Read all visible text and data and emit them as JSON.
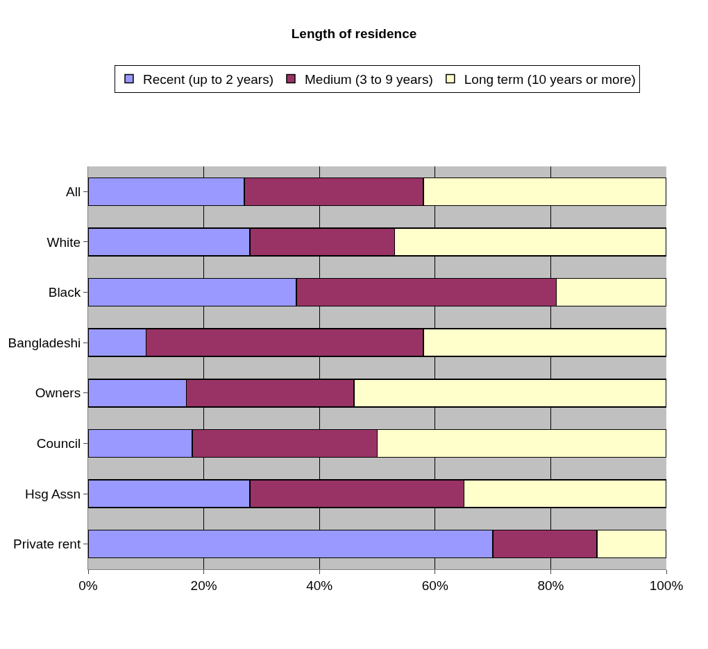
{
  "chart_data": {
    "type": "bar",
    "orientation": "horizontal",
    "stacked": true,
    "title": "Length of residence",
    "categories": [
      "All",
      "White",
      "Black",
      "Bangladeshi",
      "Owners",
      "Council",
      "Hsg Assn",
      "Private rent"
    ],
    "series": [
      {
        "name": "Recent (up to 2 years)",
        "color": "#9999ff",
        "values": [
          27,
          28,
          36,
          10,
          17,
          18,
          28,
          70
        ]
      },
      {
        "name": "Medium (3 to 9 years)",
        "color": "#993366",
        "values": [
          31,
          25,
          45,
          48,
          29,
          32,
          37,
          18
        ]
      },
      {
        "name": "Long term (10 years or more)",
        "color": "#ffffcc",
        "values": [
          42,
          47,
          19,
          42,
          54,
          50,
          35,
          12
        ]
      }
    ],
    "xlim": [
      0,
      100
    ],
    "xticks": [
      {
        "value": 0,
        "label": "0%"
      },
      {
        "value": 20,
        "label": "20%"
      },
      {
        "value": 40,
        "label": "40%"
      },
      {
        "value": 60,
        "label": "60%"
      },
      {
        "value": 80,
        "label": "80%"
      },
      {
        "value": 100,
        "label": "100%"
      }
    ],
    "grid": "x",
    "legend": "top"
  }
}
